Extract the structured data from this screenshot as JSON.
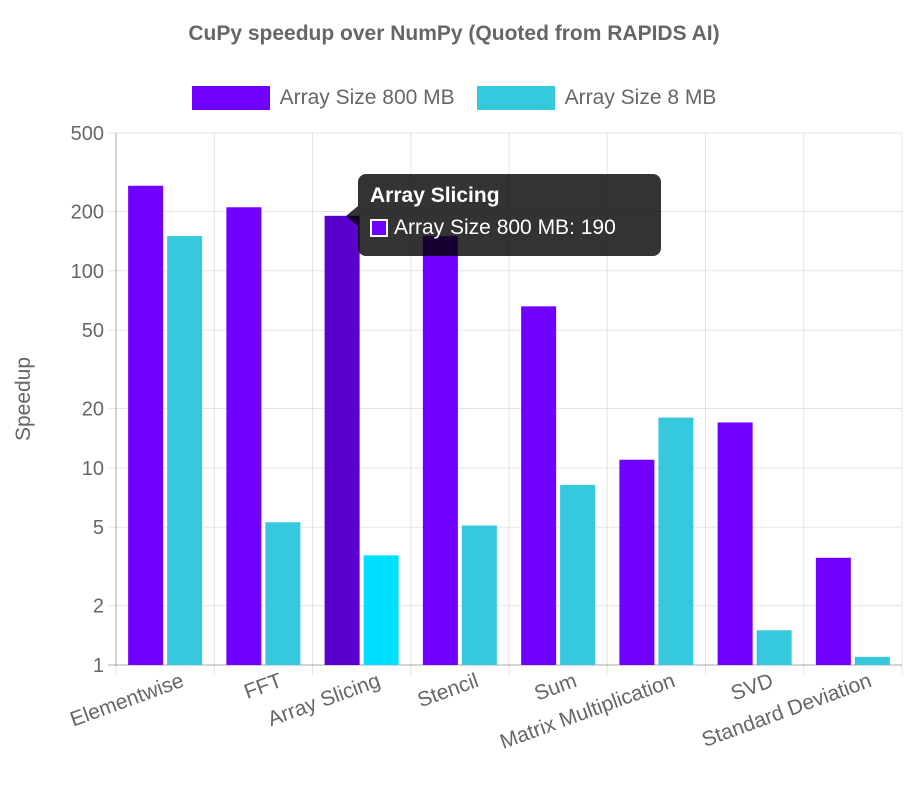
{
  "chart_data": {
    "type": "bar",
    "title": "CuPy speedup over NumPy (Quoted from RAPIDS AI)",
    "ylabel": "Speedup",
    "xlabel": "",
    "yscale": "log",
    "ylim": [
      1,
      500
    ],
    "yticks": [
      "500",
      "200",
      "100",
      "50",
      "20",
      "10",
      "5",
      "2",
      "1"
    ],
    "grid": true,
    "legend_position": "top",
    "categories": [
      "Elementwise",
      "FFT",
      "Array Slicing",
      "Stencil",
      "Sum",
      "Matrix Multiplication",
      "SVD",
      "Standard Deviation"
    ],
    "series": [
      {
        "name": "Array Size 800 MB",
        "color": "#7000FF",
        "values": [
          270,
          210,
          190,
          150,
          66,
          11,
          17,
          3.5
        ]
      },
      {
        "name": "Array Size 8 MB",
        "color": "#36C9DD",
        "values": [
          150,
          5.3,
          3.6,
          5.1,
          8.2,
          18,
          1.5,
          1.1
        ]
      }
    ],
    "highlight": {
      "category_index": 2,
      "hover_colors": [
        "#5A00CC",
        "#00DFFF"
      ]
    }
  },
  "tooltip": {
    "title": "Array Slicing",
    "label": "Array Size 800 MB: 190",
    "swatch_color": "#7000FF"
  }
}
